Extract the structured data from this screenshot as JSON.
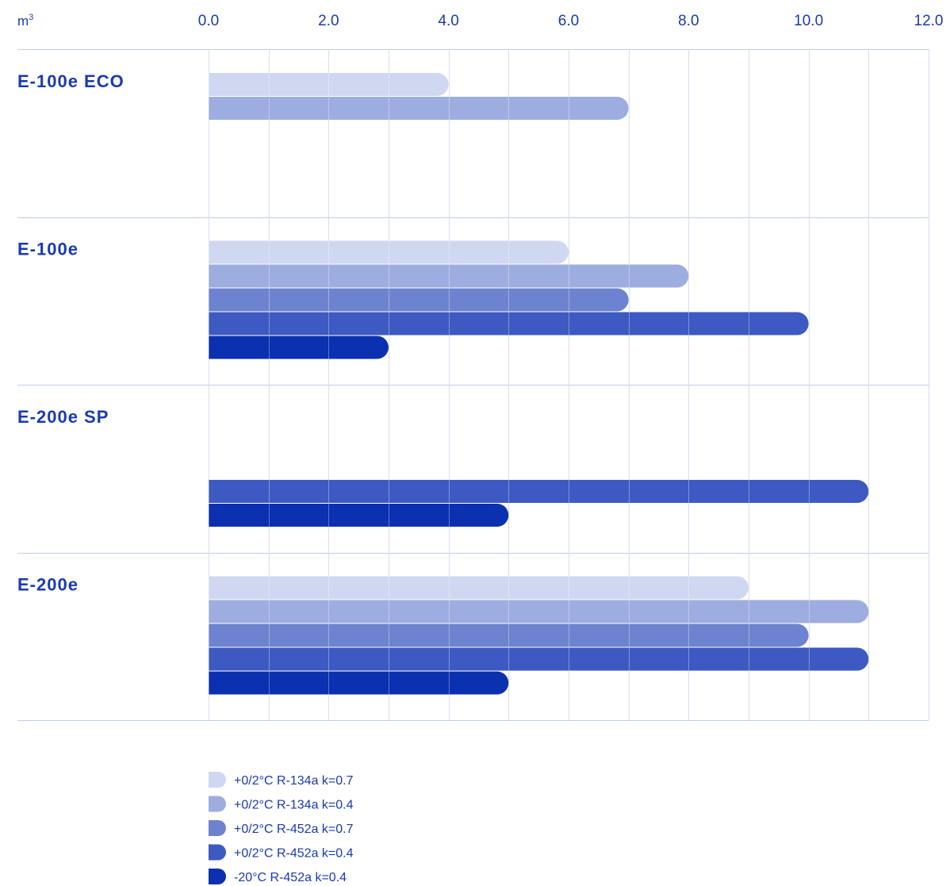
{
  "chart_data": {
    "type": "bar",
    "orientation": "horizontal",
    "unit": "m",
    "unit_superscript": "3",
    "xlim": [
      0,
      12
    ],
    "ticks": [
      "0.0",
      "2.0",
      "4.0",
      "6.0",
      "8.0",
      "10.0",
      "12.0"
    ],
    "tick_values": [
      0,
      2,
      4,
      6,
      8,
      10,
      12
    ],
    "minor_grid_step": 1,
    "grid": true,
    "legend_placement": "bottom",
    "categories": [
      "E-100e ECO",
      "E-100e",
      "E-200e SP",
      "E-200e"
    ],
    "series": [
      {
        "name": "+0/2°C R-134a k=0.7",
        "color": "#d0d7f1",
        "values": [
          4,
          6,
          null,
          9
        ]
      },
      {
        "name": "+0/2°C R-134a k=0.4",
        "color": "#9eade0",
        "values": [
          7,
          8,
          null,
          11
        ]
      },
      {
        "name": "+0/2°C R-452a k=0.7",
        "color": "#6d83cf",
        "values": [
          null,
          7,
          null,
          10
        ]
      },
      {
        "name": "+0/2°C R-452a k=0.4",
        "color": "#3d5ac2",
        "values": [
          null,
          10,
          11,
          11
        ]
      },
      {
        "name": "-20°C R-452a k=0.4",
        "color": "#0b30b0",
        "values": [
          null,
          3,
          5,
          5
        ]
      }
    ]
  }
}
